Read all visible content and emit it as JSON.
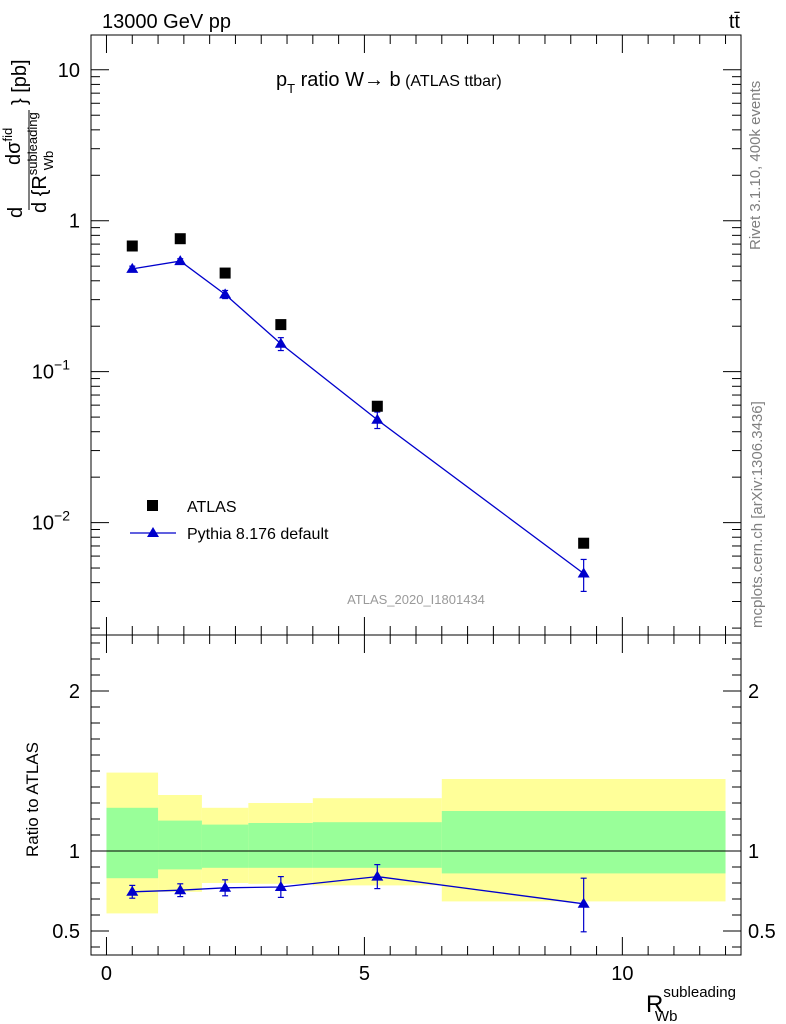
{
  "header": {
    "energy_label": "13000 GeV pp",
    "process_label": "tt̄"
  },
  "side": {
    "rivet_label": "Rivet 3.1.10,  400k events",
    "mcplots_label": "mcplots.cern.ch [arXiv:1306.3436]"
  },
  "analysis_label": "ATLAS_2020_I1801434",
  "chart_data": [
    {
      "type": "scatter",
      "title_main": "p",
      "title_sub": "T",
      "title_rest": " ratio W→ b",
      "title_small": " (ATLAS ttbar)",
      "ylabel_d": "d",
      "ylabel_dsigma": "dσ",
      "ylabel_sigma_sup": "fid",
      "ylabel_denom": "d {R",
      "ylabel_denom_sup": "subleading",
      "ylabel_denom_sub": "Wb",
      "ylabel_unit": "} [pb]",
      "yscale": "log",
      "ylim": [
        0.0018,
        17
      ],
      "xlim": [
        -0.3,
        12.3
      ],
      "y_ticks": [
        {
          "value": 10,
          "base": "10",
          "exp": ""
        },
        {
          "value": 1,
          "base": "1",
          "exp": ""
        },
        {
          "value": 0.1,
          "base": "10",
          "exp": "−1"
        },
        {
          "value": 0.01,
          "base": "10",
          "exp": "−2"
        }
      ],
      "legend_position": "bottom-left",
      "series": [
        {
          "name": "ATLAS",
          "marker": "square",
          "color": "#000000",
          "x": [
            0.5,
            1.43,
            2.3,
            3.38,
            5.25,
            9.25
          ],
          "y": [
            0.68,
            0.76,
            0.45,
            0.205,
            0.059,
            0.0073
          ]
        },
        {
          "name": "Pythia 8.176 default",
          "marker": "triangle",
          "color": "#0000cc",
          "x": [
            0.5,
            1.43,
            2.3,
            3.38,
            5.25,
            9.25
          ],
          "y": [
            0.48,
            0.54,
            0.325,
            0.153,
            0.048,
            0.0046
          ],
          "yerr_low": [
            0.02,
            0.02,
            0.02,
            0.015,
            0.006,
            0.0011
          ],
          "yerr_high": [
            0.02,
            0.02,
            0.02,
            0.015,
            0.006,
            0.0011
          ]
        }
      ]
    },
    {
      "type": "line",
      "ylabel": "Ratio to ATLAS",
      "xlabel_main": "R",
      "xlabel_sup": "subleading",
      "xlabel_sub": "Wb",
      "ylim": [
        0.35,
        2.35
      ],
      "xlim": [
        -0.3,
        12.3
      ],
      "x_ticks": [
        0,
        5,
        10
      ],
      "y_ticks": [
        0.5,
        1,
        2
      ],
      "reference": 1,
      "bands": {
        "x_edges": [
          0,
          1,
          1.85,
          2.75,
          4.0,
          6.5,
          12.0
        ],
        "green_low": [
          0.83,
          0.885,
          0.895,
          0.895,
          0.895,
          0.86
        ],
        "green_high": [
          1.27,
          1.19,
          1.165,
          1.175,
          1.18,
          1.25
        ],
        "yellow_low": [
          0.61,
          0.745,
          0.8,
          0.795,
          0.785,
          0.685
        ],
        "yellow_high": [
          1.49,
          1.35,
          1.27,
          1.3,
          1.33,
          1.45
        ],
        "green_color": "#99ff99",
        "yellow_color": "#ffff99"
      },
      "series": [
        {
          "name": "Pythia 8.176 default",
          "color": "#0000cc",
          "x": [
            0.5,
            1.43,
            2.3,
            3.38,
            5.25,
            9.25
          ],
          "y": [
            0.745,
            0.755,
            0.77,
            0.775,
            0.84,
            0.67
          ],
          "yerr_low": [
            0.04,
            0.04,
            0.05,
            0.065,
            0.075,
            0.175
          ],
          "yerr_high": [
            0.04,
            0.04,
            0.05,
            0.065,
            0.075,
            0.16
          ]
        }
      ]
    }
  ]
}
